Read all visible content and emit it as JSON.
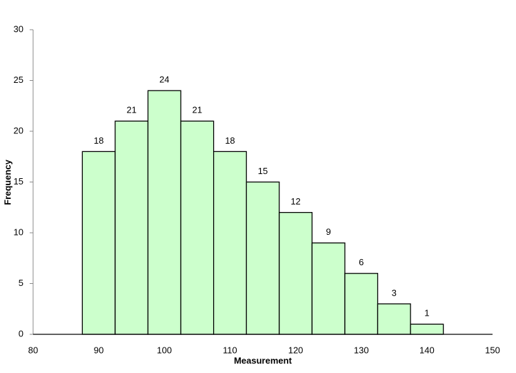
{
  "chart_data": {
    "type": "histogram",
    "x_label": "Measurement",
    "y_label": "Frequency",
    "bins": [
      87.5,
      92.5,
      97.5,
      102.5,
      107.5,
      112.5,
      117.5,
      122.5,
      127.5,
      132.5,
      137.5,
      142.5
    ],
    "values": [
      18,
      21,
      24,
      21,
      18,
      15,
      12,
      9,
      6,
      3,
      1
    ],
    "color": "#ccffcc",
    "xlim": [
      80,
      150
    ],
    "xticks": [
      80,
      90,
      100,
      110,
      120,
      130,
      140,
      150
    ],
    "ylim": [
      0,
      30
    ],
    "yticks": [
      0,
      5,
      10,
      15,
      20,
      25,
      30
    ],
    "grid": false
  }
}
